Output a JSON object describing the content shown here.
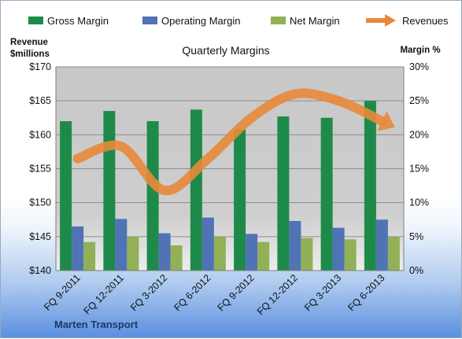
{
  "chart_data": {
    "type": "bar",
    "title": "Quarterly Margins",
    "company": "Marten Transport",
    "categories": [
      "FQ 9-2011",
      "FQ 12-2011",
      "FQ 3-2012",
      "FQ 6-2012",
      "FQ 9-2012",
      "FQ 12-2012",
      "FQ 3-2013",
      "FQ 6-2013"
    ],
    "series": [
      {
        "name": "Gross Margin",
        "axis": "right",
        "color": "#1e8a4a",
        "values": [
          22.0,
          23.5,
          22.0,
          23.7,
          20.8,
          22.7,
          22.5,
          25.0
        ]
      },
      {
        "name": "Operating Margin",
        "axis": "right",
        "color": "#4f73b4",
        "values": [
          6.5,
          7.6,
          5.5,
          7.8,
          5.4,
          7.3,
          6.3,
          7.5
        ]
      },
      {
        "name": "Net Margin",
        "axis": "right",
        "color": "#92b057",
        "values": [
          4.2,
          5.0,
          3.7,
          5.0,
          4.2,
          4.8,
          4.6,
          5.0
        ]
      },
      {
        "name": "Revenues",
        "axis": "left",
        "type": "line",
        "color": "#e8883a",
        "values": [
          156.5,
          158.3,
          151.8,
          156.5,
          162.5,
          166.0,
          165.0,
          162.0
        ]
      }
    ],
    "y_left": {
      "label": "Revenue $millions",
      "label_lines": [
        "Revenue",
        "$millions"
      ],
      "min": 140,
      "max": 170,
      "step": 5,
      "ticks": [
        "$140",
        "$145",
        "$150",
        "$155",
        "$160",
        "$165",
        "$170"
      ]
    },
    "y_right": {
      "label": "Margin %",
      "min": 0,
      "max": 30,
      "step": 5,
      "ticks": [
        "0%",
        "5%",
        "10%",
        "15%",
        "20%",
        "25%",
        "30%"
      ]
    },
    "legend_position": "top",
    "grid": true
  }
}
